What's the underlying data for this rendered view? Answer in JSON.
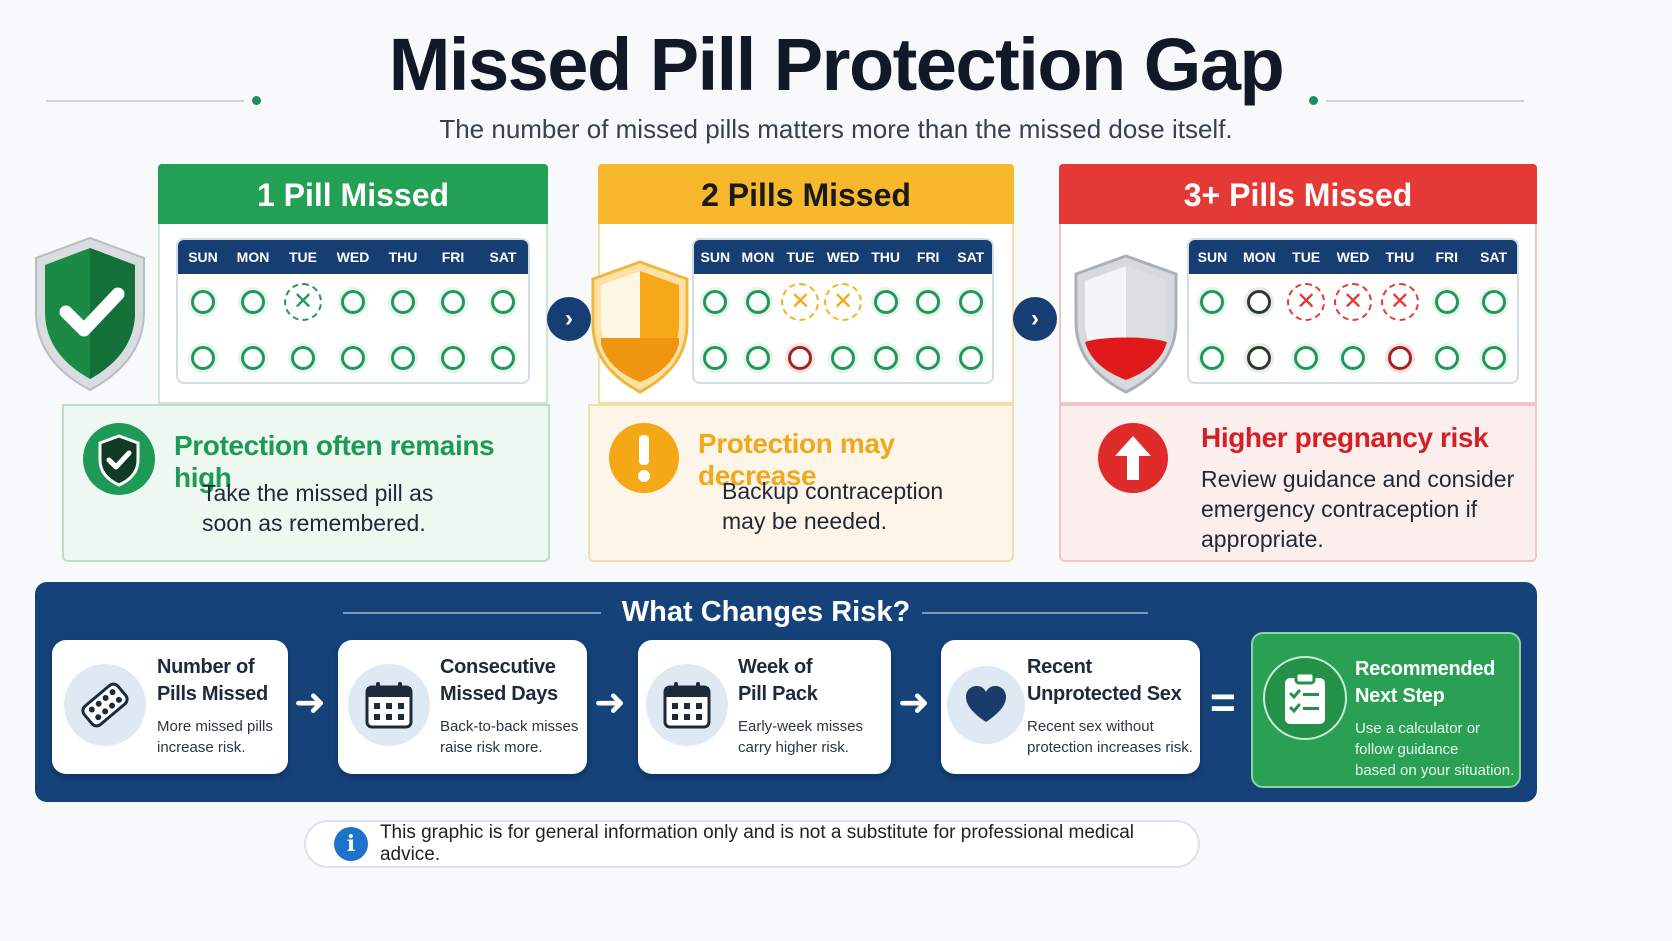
{
  "header": {
    "title": "Missed Pill Protection Gap",
    "subtitle": "The number of missed pills matters more than the missed dose itself."
  },
  "days": [
    "SUN",
    "MON",
    "TUE",
    "WED",
    "THU",
    "FRI",
    "SAT"
  ],
  "panels": [
    {
      "heading": "1 Pill Missed",
      "status_title": "Protection often remains high",
      "status_text_1": "Take the missed pill as",
      "status_text_2": "soon as remembered.",
      "colors": {
        "accent": "#22a155",
        "title": "#1e9a58",
        "bg": "#eef8f1",
        "border": "#b9dfc6"
      },
      "row1": [
        "taken",
        "taken",
        "missed",
        "taken",
        "taken",
        "taken",
        "taken"
      ],
      "row2": [
        "taken",
        "taken",
        "taken",
        "taken",
        "taken",
        "taken",
        "taken"
      ]
    },
    {
      "heading": "2 Pills Missed",
      "status_title": "Protection may decrease",
      "status_text_1": "Backup contraception",
      "status_text_2": "may be needed.",
      "colors": {
        "accent": "#f7b92b",
        "title": "#f0a81c",
        "bg": "#fdf6e8",
        "border": "#f6deaa"
      },
      "row1": [
        "taken",
        "taken",
        "missed",
        "missed",
        "taken",
        "taken",
        "taken"
      ],
      "row2": [
        "taken",
        "taken",
        "missed-dark",
        "taken",
        "taken",
        "taken",
        "taken"
      ]
    },
    {
      "heading": "3+ Pills Missed",
      "status_title": "Higher pregnancy risk",
      "status_text_1": "Review guidance and consider",
      "status_text_2": "emergency contraception if",
      "status_text_3": "appropriate.",
      "colors": {
        "accent": "#e53935",
        "title": "#d32027",
        "bg": "#fdeeee",
        "border": "#f3c4c4"
      },
      "row1": [
        "taken",
        "taken-dark",
        "missed",
        "missed",
        "missed",
        "taken",
        "taken"
      ],
      "row2": [
        "taken",
        "taken-dark",
        "taken",
        "taken",
        "missed-dark",
        "taken",
        "taken"
      ]
    }
  ],
  "risk": {
    "title": "What Changes Risk?",
    "cards": [
      {
        "title_1": "Number of",
        "title_2": "Pills Missed",
        "text_1": "More missed pills",
        "text_2": "increase risk.",
        "icon": "pill-blister-icon"
      },
      {
        "title_1": "Consecutive",
        "title_2": "Missed Days",
        "text_1": "Back-to-back misses",
        "text_2": "raise risk more.",
        "icon": "calendar-icon"
      },
      {
        "title_1": "Week of",
        "title_2": "Pill Pack",
        "text_1": "Early-week misses",
        "text_2": "carry higher risk.",
        "icon": "calendar-icon"
      },
      {
        "title_1": "Recent",
        "title_2": "Unprotected Sex",
        "text_1": "Recent sex without",
        "text_2": "protection increases risk.",
        "icon": "heart-icon"
      }
    ],
    "result": {
      "title_1": "Recommended",
      "title_2": "Next Step",
      "text_1": "Use a calculator or",
      "text_2": "follow guidance",
      "text_3": "based on your situation.",
      "icon": "clipboard-checklist-icon"
    },
    "arrow_glyph": "➜",
    "equals_glyph": "="
  },
  "disclaimer": {
    "icon_glyph": "i",
    "text": "This graphic is for general information only and is not a substitute for professional medical advice."
  }
}
